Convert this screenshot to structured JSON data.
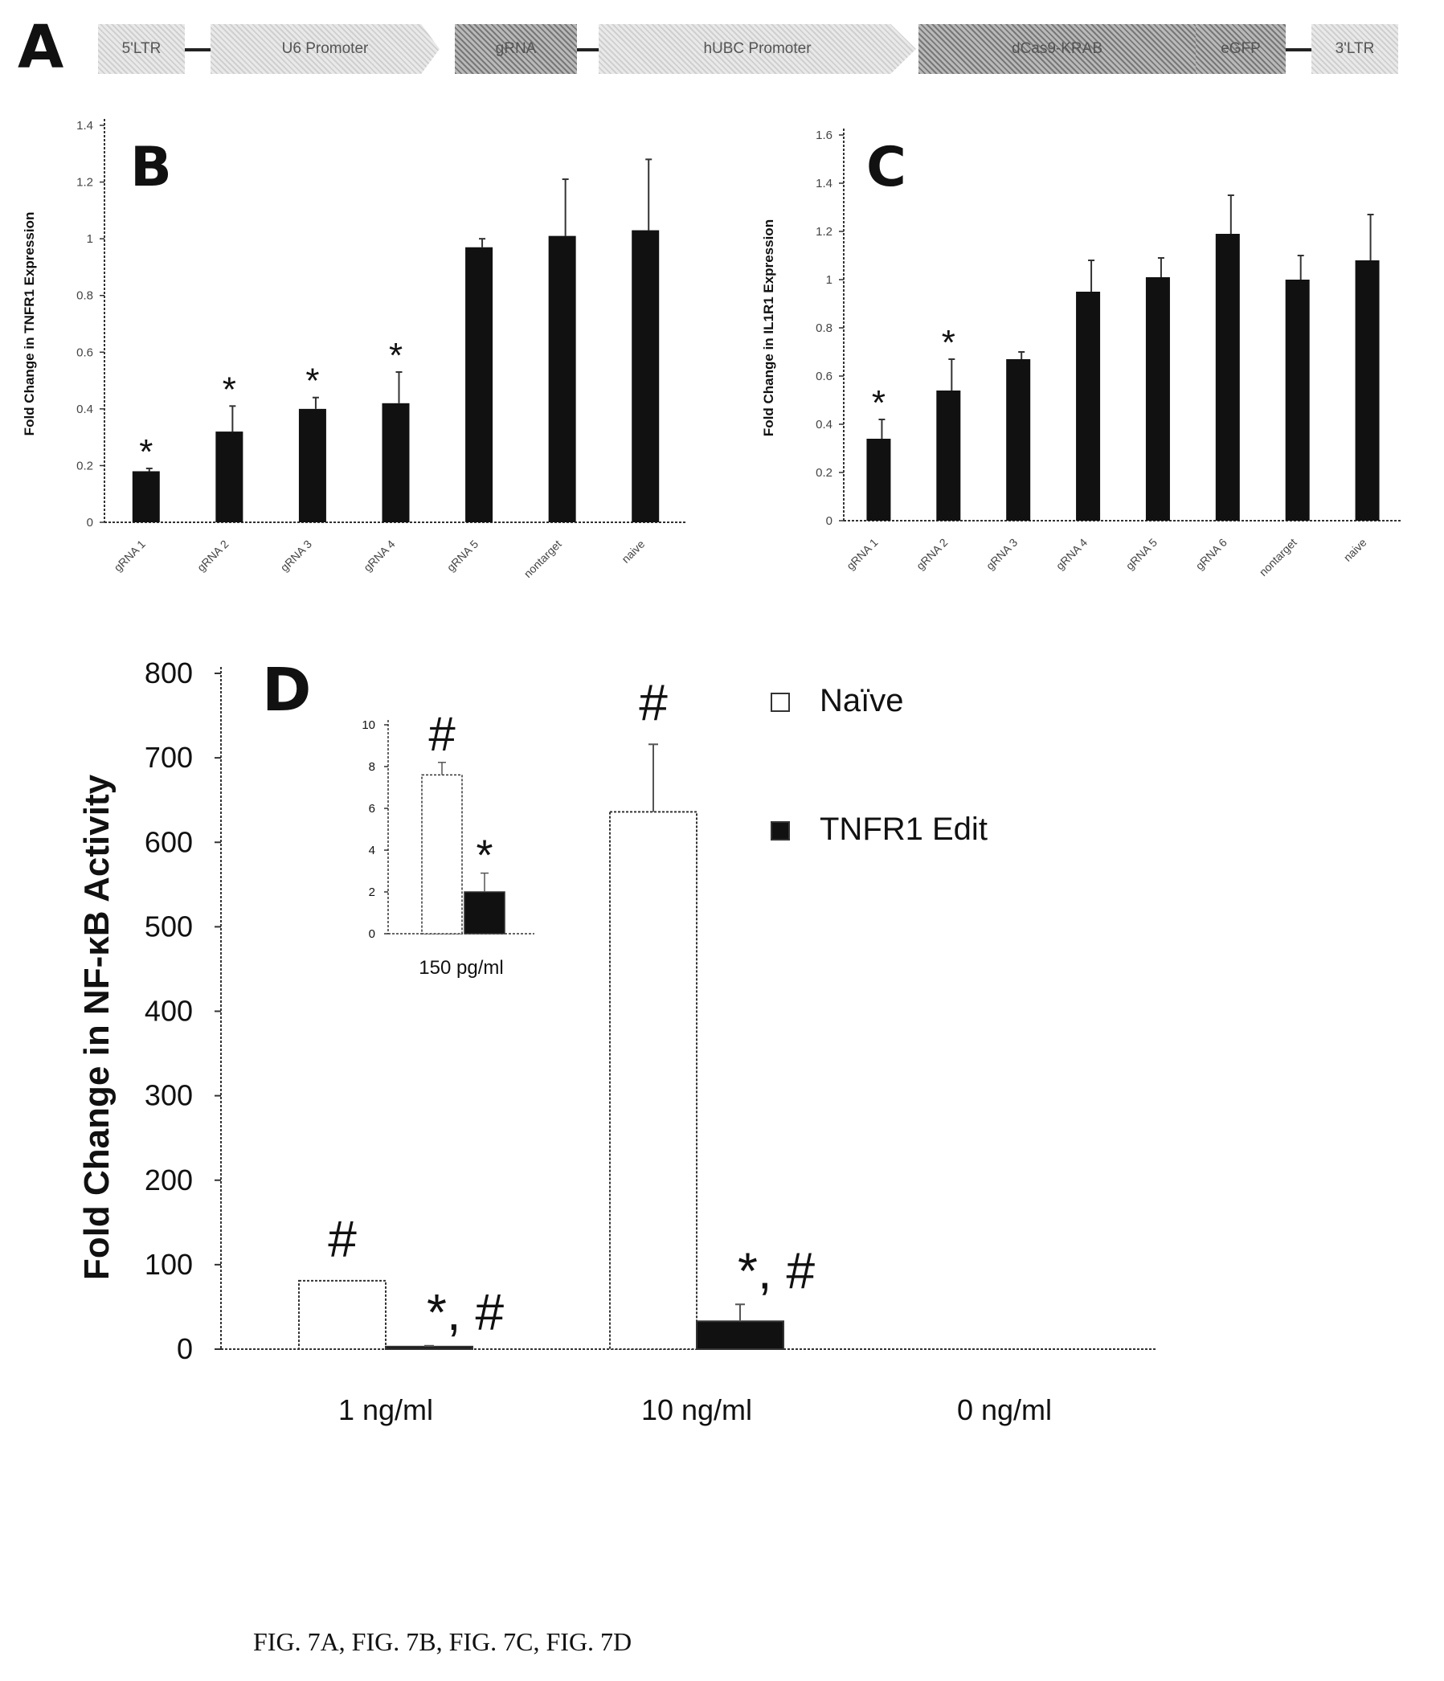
{
  "caption": "FIG. 7A, FIG. 7B, FIG. 7C, FIG. 7D",
  "panel_a": {
    "letter": "A",
    "segments": [
      {
        "label": "5'LTR",
        "style": "light"
      },
      {
        "label": "U6 Promoter",
        "style": "light"
      },
      {
        "label": "gRNA",
        "style": "dark"
      },
      {
        "label": "hUBC Promoter",
        "style": "light"
      },
      {
        "label": "dCas9-KRAB",
        "style": "dark"
      },
      {
        "label": "eGFP",
        "style": "dark"
      },
      {
        "label": "3'LTR",
        "style": "light"
      }
    ]
  },
  "chart_data": [
    {
      "panel": "B",
      "type": "bar",
      "ylabel": "Fold Change in TNFR1 Expression",
      "ylim": [
        0,
        1.4
      ],
      "yticks": [
        "0",
        "0.2",
        "0.4",
        "0.6",
        "0.8",
        "1",
        "1.2",
        "1.4"
      ],
      "categories": [
        "gRNA 1",
        "gRNA 2",
        "gRNA 3",
        "gRNA 4",
        "gRNA 5",
        "nontarget",
        "naive"
      ],
      "values": [
        0.18,
        0.32,
        0.4,
        0.42,
        0.97,
        1.01,
        1.03
      ],
      "errors": [
        0.01,
        0.09,
        0.04,
        0.11,
        0.03,
        0.2,
        0.25
      ],
      "significance": [
        "*",
        "*",
        "*",
        "*",
        "",
        "",
        ""
      ]
    },
    {
      "panel": "C",
      "type": "bar",
      "ylabel": "Fold Change in IL1R1 Expression",
      "ylim": [
        0,
        1.6
      ],
      "yticks": [
        "0",
        "0.2",
        "0.4",
        "0.6",
        "0.8",
        "1",
        "1.2",
        "1.4",
        "1.6"
      ],
      "categories": [
        "gRNA 1",
        "gRNA 2",
        "gRNA 3",
        "gRNA 4",
        "gRNA 5",
        "gRNA 6",
        "nontarget",
        "naive"
      ],
      "values": [
        0.34,
        0.54,
        0.67,
        0.95,
        1.01,
        1.19,
        1.0,
        1.08
      ],
      "errors": [
        0.08,
        0.13,
        0.03,
        0.13,
        0.08,
        0.16,
        0.1,
        0.19
      ],
      "significance": [
        "*",
        "*",
        "",
        "",
        "",
        "",
        "",
        ""
      ]
    },
    {
      "panel": "D",
      "type": "bar",
      "ylabel": "Fold Change in NF-κB Activity",
      "ylim": [
        0,
        800
      ],
      "yticks": [
        "0",
        "100",
        "200",
        "300",
        "400",
        "500",
        "600",
        "700",
        "800"
      ],
      "categories": [
        "1 ng/ml",
        "10 ng/ml",
        "0 ng/ml"
      ],
      "series": [
        {
          "name": "Naïve",
          "values": [
            81,
            636,
            0
          ],
          "errors": [
            0,
            80,
            0
          ],
          "annotations": [
            "#",
            "#",
            ""
          ],
          "fill": "#ffffff"
        },
        {
          "name": "TNFR1 Edit",
          "values": [
            3,
            33,
            0
          ],
          "errors": [
            1,
            20,
            0
          ],
          "annotations": [
            "*, #",
            "*, #",
            ""
          ],
          "fill": "#111111"
        }
      ],
      "legend_position": "top-right",
      "inset": {
        "type": "bar",
        "categories": [
          "150 pg/ml"
        ],
        "ylim": [
          0,
          10
        ],
        "yticks": [
          "0",
          "2",
          "4",
          "6",
          "8",
          "10"
        ],
        "series": [
          {
            "name": "Naïve",
            "values": [
              7.6
            ],
            "errors": [
              0.6
            ],
            "annotations": [
              "#"
            ]
          },
          {
            "name": "TNFR1 Edit",
            "values": [
              2.0
            ],
            "errors": [
              0.9
            ],
            "annotations": [
              "*"
            ]
          }
        ]
      }
    }
  ]
}
